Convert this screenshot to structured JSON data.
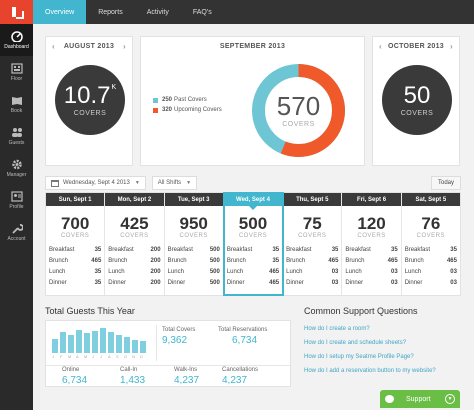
{
  "nav": {
    "items": [
      {
        "label": "Dashboard",
        "icon": "dashboard-icon",
        "active": true
      },
      {
        "label": "Floor",
        "icon": "floor-icon",
        "active": false
      },
      {
        "label": "Book",
        "icon": "book-icon",
        "active": false
      },
      {
        "label": "Guests",
        "icon": "guests-icon",
        "active": false
      },
      {
        "label": "Manager",
        "icon": "gear-icon",
        "active": false
      },
      {
        "label": "Profile",
        "icon": "profile-icon",
        "active": false
      },
      {
        "label": "Account",
        "icon": "wrench-icon",
        "active": false
      }
    ]
  },
  "tabs": [
    {
      "label": "Overview",
      "active": true
    },
    {
      "label": "Reports",
      "active": false
    },
    {
      "label": "Activity",
      "active": false
    },
    {
      "label": "FAQ's",
      "active": false
    }
  ],
  "months": {
    "prev": {
      "title": "AUGUST 2013",
      "value": "10.7",
      "suffix": "K",
      "label": "COVERS"
    },
    "current": {
      "title": "SEPTEMBER 2013",
      "value": "570",
      "label": "COVERS",
      "past": "250",
      "past_label": "Past Covers",
      "upcoming": "320",
      "upcoming_label": "Upcoming Covers"
    },
    "next": {
      "title": "OCTOBER 2013",
      "value": "50",
      "label": "COVERS"
    }
  },
  "colors": {
    "accent": "#41b6ce",
    "upcoming": "#f05a2b",
    "past": "#6ec6d4"
  },
  "selector": {
    "date": "Wednesday, Sept 4 2013",
    "shifts": "All Shifts",
    "today": "Today"
  },
  "days": [
    {
      "name": "Sun, Sept 1",
      "covers": "700",
      "label": "COVERS",
      "active": false,
      "meals": [
        [
          "Breakfast",
          "35"
        ],
        [
          "Brunch",
          "465"
        ],
        [
          "Lunch",
          "35"
        ],
        [
          "Dinner",
          "35"
        ]
      ]
    },
    {
      "name": "Mon, Sept 2",
      "covers": "425",
      "label": "COVERS",
      "active": false,
      "meals": [
        [
          "Breakfast",
          "200"
        ],
        [
          "Brunch",
          "200"
        ],
        [
          "Lunch",
          "200"
        ],
        [
          "Dinner",
          "200"
        ]
      ]
    },
    {
      "name": "Tue, Sept 3",
      "covers": "950",
      "label": "COVERS",
      "active": false,
      "meals": [
        [
          "Breakfast",
          "500"
        ],
        [
          "Brunch",
          "500"
        ],
        [
          "Lunch",
          "500"
        ],
        [
          "Dinner",
          "500"
        ]
      ]
    },
    {
      "name": "Wed, Sept 4",
      "covers": "500",
      "label": "COVERS",
      "active": true,
      "meals": [
        [
          "Breakfast",
          "35"
        ],
        [
          "Brunch",
          "35"
        ],
        [
          "Lunch",
          "465"
        ],
        [
          "Dinner",
          "465"
        ]
      ]
    },
    {
      "name": "Thu, Sept 5",
      "covers": "75",
      "label": "COVERS",
      "active": false,
      "meals": [
        [
          "Breakfast",
          "35"
        ],
        [
          "Brunch",
          "465"
        ],
        [
          "Lunch",
          "03"
        ],
        [
          "Dinner",
          "03"
        ]
      ]
    },
    {
      "name": "Fri, Sept 6",
      "covers": "120",
      "label": "COVERS",
      "active": false,
      "meals": [
        [
          "Breakfast",
          "35"
        ],
        [
          "Brunch",
          "465"
        ],
        [
          "Lunch",
          "03"
        ],
        [
          "Dinner",
          "03"
        ]
      ]
    },
    {
      "name": "Sat, Sept 5",
      "covers": "76",
      "label": "COVERS",
      "active": false,
      "meals": [
        [
          "Breakfast",
          "35"
        ],
        [
          "Brunch",
          "465"
        ],
        [
          "Lunch",
          "03"
        ],
        [
          "Dinner",
          "03"
        ]
      ]
    }
  ],
  "guests": {
    "title": "Total Guests This Year",
    "months": [
      "J",
      "F",
      "M",
      "A",
      "M",
      "J",
      "J",
      "A",
      "S",
      "O",
      "N",
      "D"
    ],
    "bars": [
      0.55,
      0.8,
      0.7,
      0.9,
      0.75,
      0.85,
      0.95,
      0.8,
      0.7,
      0.6,
      0.5,
      0.45
    ],
    "total_covers_label": "Total Covers",
    "total_covers": "9,362",
    "total_res_label": "Total Reservations",
    "total_res": "6,734",
    "online_label": "Online",
    "online": "6,734",
    "callin_label": "Call-In",
    "callin": "1,433",
    "walkins_label": "Walk-Ins",
    "walkins": "4,237",
    "cancel_label": "Cancellations",
    "cancel": "4,237"
  },
  "support": {
    "title": "Common Support Questions",
    "questions": [
      "How do I create a room?",
      "How do I create and schedule sheets?",
      "How do I setup my Seatme Profile Page?",
      "How do I add a reservation button to my website?"
    ],
    "button": "Support"
  }
}
